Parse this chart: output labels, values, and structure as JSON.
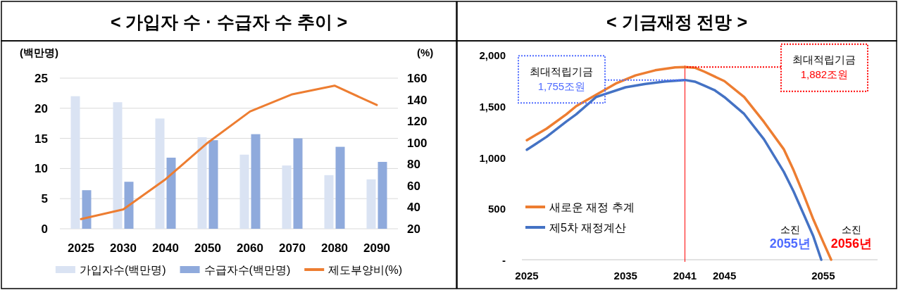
{
  "chart_data": [
    {
      "type": "bar",
      "title": "< 가입자 수 · 수급자 수 추이 >",
      "ylabel": "(백만명)",
      "y2label": "(%)",
      "categories": [
        "2025",
        "2030",
        "2040",
        "2050",
        "2060",
        "2070",
        "2080",
        "2090"
      ],
      "series": [
        {
          "name": "가입자수(백만명)",
          "color": "#dae3f3",
          "values": [
            22.0,
            21.0,
            18.3,
            15.2,
            12.3,
            10.5,
            8.9,
            8.2
          ]
        },
        {
          "name": "수급자수(백만명)",
          "color": "#8faadc",
          "values": [
            6.4,
            7.8,
            11.8,
            14.7,
            15.7,
            15.0,
            13.6,
            11.1
          ]
        },
        {
          "name": "제도부양비(%)",
          "type": "line",
          "axis": "y2",
          "color": "#ed7d31",
          "values": [
            29,
            38,
            66,
            100,
            129,
            145,
            153,
            135
          ]
        }
      ],
      "ylim": [
        0,
        25
      ],
      "yticks": [
        0,
        5,
        10,
        15,
        20,
        25
      ],
      "y2lim": [
        20,
        160
      ],
      "y2ticks": [
        20,
        40,
        60,
        80,
        100,
        120,
        140,
        160
      ],
      "grid": "y",
      "legend": "bottom"
    },
    {
      "type": "line",
      "title": "< 기금재정 전망 >",
      "xlim": [
        2024.5,
        2060.5
      ],
      "xticks": [
        2025,
        2035,
        2041,
        2045,
        2055
      ],
      "ylim": [
        0,
        2000
      ],
      "yticks": [
        {
          "value": 0,
          "label": "-"
        },
        {
          "value": 500,
          "label": "500"
        },
        {
          "value": 1000,
          "label": "1,000"
        },
        {
          "value": 1500,
          "label": "1,500"
        },
        {
          "value": 2000,
          "label": "2,000"
        }
      ],
      "series": [
        {
          "name": "새로운 재정 추계",
          "color": "#ed7d31",
          "x": [
            2025,
            2027,
            2029,
            2030,
            2032,
            2034,
            2036,
            2038,
            2040,
            2041,
            2042,
            2043,
            2045,
            2047,
            2049,
            2051,
            2052,
            2053,
            2054,
            2055,
            2055.8
          ],
          "values": [
            1167,
            1280,
            1420,
            1500,
            1610,
            1720,
            1800,
            1850,
            1878,
            1882,
            1875,
            1835,
            1744,
            1588,
            1346,
            1080,
            874,
            640,
            393,
            173,
            0
          ]
        },
        {
          "name": "제5차 재정계산",
          "color": "#4472c4",
          "x": [
            2025,
            2027,
            2029,
            2030,
            2032,
            2035,
            2037,
            2039,
            2041,
            2042,
            2043,
            2044,
            2045,
            2047,
            2049,
            2051,
            2052,
            2053,
            2054,
            2054.8
          ],
          "values": [
            1074,
            1200,
            1350,
            1420,
            1588,
            1684,
            1717,
            1740,
            1755,
            1739,
            1698,
            1656,
            1588,
            1423,
            1176,
            860,
            667,
            448,
            228,
            0
          ]
        }
      ],
      "ref_lines": [
        {
          "axis": "x",
          "value": 2041,
          "color": "#ff0000"
        }
      ],
      "annotations": [
        {
          "text": "최대적립기금\n1,755조원",
          "x": 2041,
          "y": 1755
        },
        {
          "text": "최대적립기금\n1,882조원",
          "x": 2041,
          "y": 1882
        },
        {
          "text": "소진\n2055년",
          "x": 2055,
          "y": 0
        },
        {
          "text": "소진\n2056년",
          "x": 2056,
          "y": 0
        }
      ],
      "legend": "bottom left"
    }
  ]
}
